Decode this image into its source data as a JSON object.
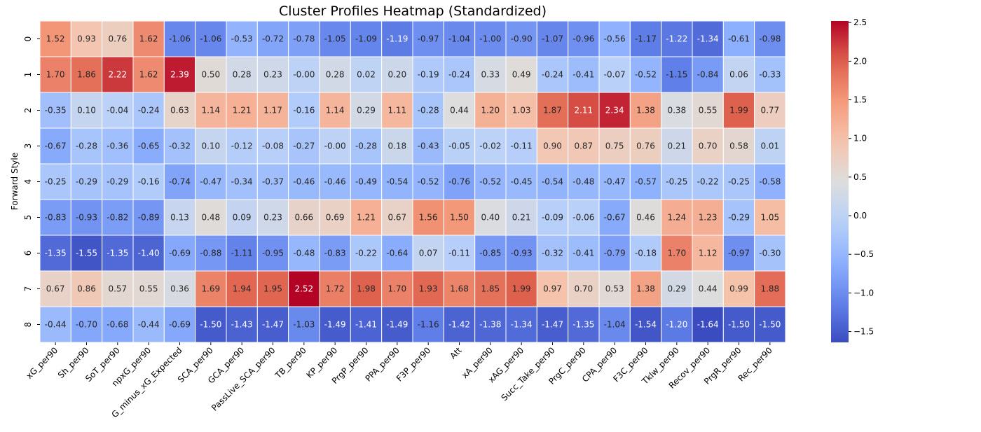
{
  "chart_data": {
    "type": "heatmap",
    "title": "Cluster Profiles Heatmap (Standardized)",
    "xlabel": "",
    "ylabel": "Forward Style",
    "colormap": "coolwarm",
    "colorbar": {
      "vmin": -1.64,
      "vmax": 2.52,
      "ticks": [
        "2.5",
        "2.0",
        "1.5",
        "1.0",
        "0.5",
        "0.0",
        "−0.5",
        "−1.0",
        "−1.5"
      ],
      "tick_values": [
        2.5,
        2.0,
        1.5,
        1.0,
        0.5,
        0.0,
        -0.5,
        -1.0,
        -1.5
      ]
    },
    "row_labels": [
      "0",
      "1",
      "2",
      "3",
      "4",
      "5",
      "6",
      "7",
      "8"
    ],
    "col_labels": [
      "xG_per90",
      "Sh_per90",
      "SoT_per90",
      "npxG_per90",
      "G_minus_xG_Expected",
      "SCA_per90",
      "GCA_per90",
      "PassLive_SCA_per90",
      "TB_per90",
      "KP_per90",
      "PrgP_per90",
      "PPA_per90",
      "F3P_per90",
      "Att",
      "xA_per90",
      "xAG_per90",
      "Succ_Take_per90",
      "PrgC_per90",
      "CPA_per90",
      "F3C_per90",
      "Tklw_per90",
      "Recov_per90",
      "PrgR_per90",
      "Rec_per90"
    ],
    "values": [
      [
        1.52,
        0.93,
        0.76,
        1.62,
        -1.06,
        -1.06,
        -0.53,
        -0.72,
        -0.78,
        -1.05,
        -1.09,
        -1.19,
        -0.97,
        -1.04,
        -1.0,
        -0.9,
        -1.07,
        -0.96,
        -0.56,
        -1.17,
        -1.22,
        -1.34,
        -0.61,
        -0.98
      ],
      [
        1.7,
        1.86,
        2.22,
        1.62,
        2.39,
        0.5,
        0.28,
        0.23,
        -0.0,
        0.28,
        0.02,
        0.2,
        -0.19,
        -0.24,
        0.33,
        0.49,
        -0.24,
        -0.41,
        -0.07,
        -0.52,
        -1.15,
        -0.84,
        0.06,
        -0.33
      ],
      [
        -0.35,
        0.1,
        -0.04,
        -0.24,
        0.63,
        1.14,
        1.21,
        1.17,
        -0.16,
        1.14,
        0.29,
        1.11,
        -0.28,
        0.44,
        1.2,
        1.03,
        1.87,
        2.11,
        2.34,
        1.38,
        0.38,
        0.55,
        1.99,
        0.77
      ],
      [
        -0.67,
        -0.28,
        -0.36,
        -0.65,
        -0.32,
        0.1,
        -0.12,
        -0.08,
        -0.27,
        -0.0,
        -0.28,
        0.18,
        -0.43,
        -0.05,
        -0.02,
        -0.11,
        0.9,
        0.87,
        0.75,
        0.76,
        0.21,
        0.7,
        0.58,
        0.01
      ],
      [
        -0.25,
        -0.29,
        -0.29,
        -0.16,
        -0.74,
        -0.47,
        -0.34,
        -0.37,
        -0.46,
        -0.46,
        -0.49,
        -0.54,
        -0.52,
        -0.76,
        -0.52,
        -0.45,
        -0.54,
        -0.48,
        -0.47,
        -0.57,
        -0.25,
        -0.22,
        -0.25,
        -0.58
      ],
      [
        -0.83,
        -0.93,
        -0.82,
        -0.89,
        0.13,
        0.48,
        0.09,
        0.23,
        0.66,
        0.69,
        1.21,
        0.67,
        1.56,
        1.5,
        0.4,
        0.21,
        -0.09,
        -0.06,
        -0.67,
        0.46,
        1.24,
        1.23,
        -0.29,
        1.05
      ],
      [
        -1.35,
        -1.55,
        -1.35,
        -1.4,
        -0.69,
        -0.88,
        -1.11,
        -0.95,
        -0.48,
        -0.83,
        -0.22,
        -0.64,
        0.07,
        -0.11,
        -0.85,
        -0.93,
        -0.32,
        -0.41,
        -0.79,
        -0.18,
        1.7,
        1.12,
        -0.97,
        -0.3
      ],
      [
        0.67,
        0.86,
        0.57,
        0.55,
        0.36,
        1.69,
        1.94,
        1.95,
        2.52,
        1.72,
        1.98,
        1.7,
        1.93,
        1.68,
        1.85,
        1.99,
        0.97,
        0.7,
        0.53,
        1.38,
        0.29,
        0.44,
        0.99,
        1.88
      ],
      [
        -0.44,
        -0.7,
        -0.68,
        -0.44,
        -0.69,
        -1.5,
        -1.43,
        -1.47,
        -1.03,
        -1.49,
        -1.41,
        -1.49,
        -1.16,
        -1.42,
        -1.38,
        -1.34,
        -1.47,
        -1.35,
        -1.04,
        -1.54,
        -1.2,
        -1.64,
        -1.5,
        -1.5
      ]
    ],
    "cell_text": [
      [
        "1.52",
        "0.93",
        "0.76",
        "1.62",
        "-1.06",
        "-1.06",
        "-0.53",
        "-0.72",
        "-0.78",
        "-1.05",
        "-1.09",
        "-1.19",
        "-0.97",
        "-1.04",
        "-1.00",
        "-0.90",
        "-1.07",
        "-0.96",
        "-0.56",
        "-1.17",
        "-1.22",
        "-1.34",
        "-0.61",
        "-0.98"
      ],
      [
        "1.70",
        "1.86",
        "2.22",
        "1.62",
        "2.39",
        "0.50",
        "0.28",
        "0.23",
        "-0.00",
        "0.28",
        "0.02",
        "0.20",
        "-0.19",
        "-0.24",
        "0.33",
        "0.49",
        "-0.24",
        "-0.41",
        "-0.07",
        "-0.52",
        "-1.15",
        "-0.84",
        "0.06",
        "-0.33"
      ],
      [
        "-0.35",
        "0.10",
        "-0.04",
        "-0.24",
        "0.63",
        "1.14",
        "1.21",
        "1.17",
        "-0.16",
        "1.14",
        "0.29",
        "1.11",
        "-0.28",
        "0.44",
        "1.20",
        "1.03",
        "1.87",
        "2.11",
        "2.34",
        "1.38",
        "0.38",
        "0.55",
        "1.99",
        "0.77"
      ],
      [
        "-0.67",
        "-0.28",
        "-0.36",
        "-0.65",
        "-0.32",
        "0.10",
        "-0.12",
        "-0.08",
        "-0.27",
        "-0.00",
        "-0.28",
        "0.18",
        "-0.43",
        "-0.05",
        "-0.02",
        "-0.11",
        "0.90",
        "0.87",
        "0.75",
        "0.76",
        "0.21",
        "0.70",
        "0.58",
        "0.01"
      ],
      [
        "-0.25",
        "-0.29",
        "-0.29",
        "-0.16",
        "-0.74",
        "-0.47",
        "-0.34",
        "-0.37",
        "-0.46",
        "-0.46",
        "-0.49",
        "-0.54",
        "-0.52",
        "-0.76",
        "-0.52",
        "-0.45",
        "-0.54",
        "-0.48",
        "-0.47",
        "-0.57",
        "-0.25",
        "-0.22",
        "-0.25",
        "-0.58"
      ],
      [
        "-0.83",
        "-0.93",
        "-0.82",
        "-0.89",
        "0.13",
        "0.48",
        "0.09",
        "0.23",
        "0.66",
        "0.69",
        "1.21",
        "0.67",
        "1.56",
        "1.50",
        "0.40",
        "0.21",
        "-0.09",
        "-0.06",
        "-0.67",
        "0.46",
        "1.24",
        "1.23",
        "-0.29",
        "1.05"
      ],
      [
        "-1.35",
        "-1.55",
        "-1.35",
        "-1.40",
        "-0.69",
        "-0.88",
        "-1.11",
        "-0.95",
        "-0.48",
        "-0.83",
        "-0.22",
        "-0.64",
        "0.07",
        "-0.11",
        "-0.85",
        "-0.93",
        "-0.32",
        "-0.41",
        "-0.79",
        "-0.18",
        "1.70",
        "1.12",
        "-0.97",
        "-0.30"
      ],
      [
        "0.67",
        "0.86",
        "0.57",
        "0.55",
        "0.36",
        "1.69",
        "1.94",
        "1.95",
        "2.52",
        "1.72",
        "1.98",
        "1.70",
        "1.93",
        "1.68",
        "1.85",
        "1.99",
        "0.97",
        "0.70",
        "0.53",
        "1.38",
        "0.29",
        "0.44",
        "0.99",
        "1.88"
      ],
      [
        "-0.44",
        "-0.70",
        "-0.68",
        "-0.44",
        "-0.69",
        "-1.50",
        "-1.43",
        "-1.47",
        "-1.03",
        "-1.49",
        "-1.41",
        "-1.49",
        "-1.16",
        "-1.42",
        "-1.38",
        "-1.34",
        "-1.47",
        "-1.35",
        "-1.04",
        "-1.54",
        "-1.20",
        "-1.64",
        "-1.50",
        "-1.50"
      ]
    ],
    "grid": false
  }
}
